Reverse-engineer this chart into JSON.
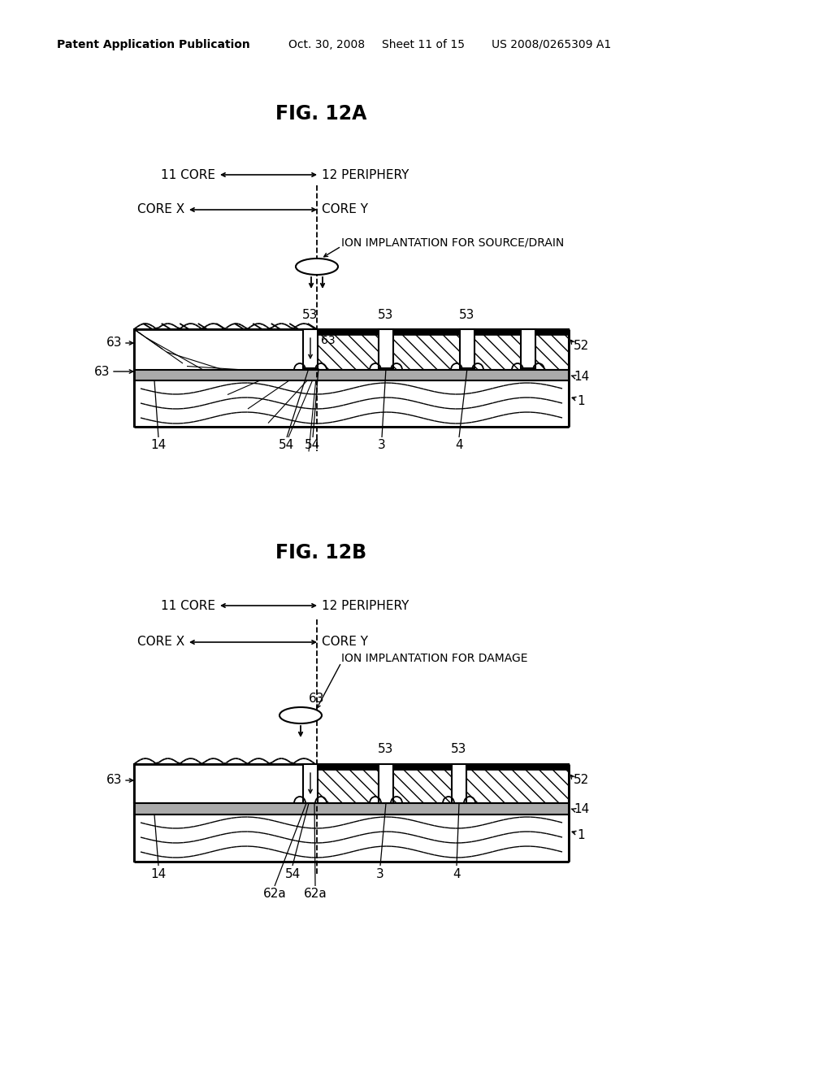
{
  "bg": "#ffffff",
  "header1": "Patent Application Publication",
  "header2": "Oct. 30, 2008",
  "header3": "Sheet 11 of 15",
  "header4": "US 2008/0265309 A1",
  "figA": "FIG. 12A",
  "figB": "FIG. 12B",
  "core11": "11 CORE",
  "peri12": "12 PERIPHERY",
  "coreX": "CORE X",
  "coreY": "CORE Y",
  "ionA": "ION IMPLANTATION FOR SOURCE/DRAIN",
  "ionB": "ION IMPLANTATION FOR DAMAGE",
  "lc": "#000000"
}
